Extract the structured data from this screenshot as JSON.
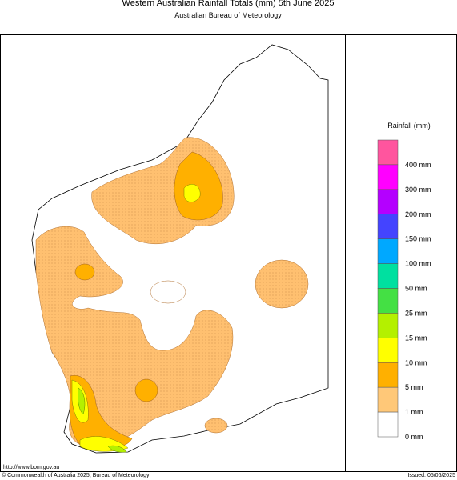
{
  "header": {
    "title": "Western Australian Rainfall Totals (mm) 5th June 2025",
    "subtitle": "Australian Bureau of Meteorology"
  },
  "legend": {
    "title": "Rainfall (mm)",
    "items": [
      {
        "label": "400 mm",
        "color": "#ff559e"
      },
      {
        "label": "300 mm",
        "color": "#ff00ff"
      },
      {
        "label": "200 mm",
        "color": "#b400ff"
      },
      {
        "label": "150 mm",
        "color": "#4444ff"
      },
      {
        "label": "100 mm",
        "color": "#00a8ff"
      },
      {
        "label": "50 mm",
        "color": "#00e0a0"
      },
      {
        "label": "25 mm",
        "color": "#44e044"
      },
      {
        "label": "15 mm",
        "color": "#b4f000"
      },
      {
        "label": "10 mm",
        "color": "#ffff00"
      },
      {
        "label": "5 mm",
        "color": "#ffb000"
      },
      {
        "label": "1 mm",
        "color": "#ffc878"
      },
      {
        "label": "0 mm",
        "color": "#ffffff"
      }
    ]
  },
  "footer": {
    "url": "http://www.bom.gov.au",
    "copyright": "© Commonwealth of Australia 2025, Bureau of Meteorology",
    "issued": "Issued: 05/06/2025"
  }
}
